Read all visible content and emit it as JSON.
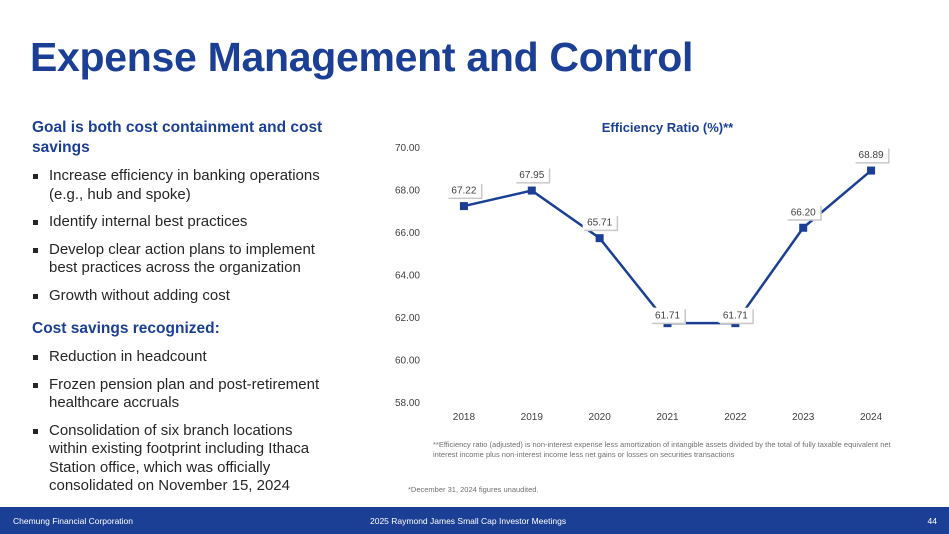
{
  "slide": {
    "title": "Expense Management and Control",
    "footer": {
      "company": "Chemung Financial Corporation",
      "event": "2025 Raymond James Small Cap Investor Meetings",
      "page_number": "44"
    }
  },
  "left": {
    "goal_heading": "Goal is both cost containment and cost savings",
    "goal_bullets": [
      "Increase efficiency in banking operations (e.g., hub and spoke)",
      "Identify internal best practices",
      "Develop clear action plans to implement best practices across the organization",
      "Growth without adding cost"
    ],
    "savings_heading": "Cost savings recognized:",
    "savings_bullets": [
      "Reduction in headcount",
      "Frozen pension plan and post-retirement healthcare accruals",
      "Consolidation of six branch locations within existing footprint including Ithaca Station office, which was officially consolidated on November 15, 2024"
    ]
  },
  "chart_data": {
    "type": "line",
    "title": "Efficiency Ratio (%)**",
    "categories": [
      "2018",
      "2019",
      "2020",
      "2021",
      "2022",
      "2023",
      "2024"
    ],
    "values": [
      67.22,
      67.95,
      65.71,
      61.71,
      61.71,
      66.2,
      68.89
    ],
    "data_labels": [
      "67.22",
      "67.95",
      "65.71",
      "61.71",
      "61.71",
      "66.20",
      "68.89"
    ],
    "yticks": [
      "58.00",
      "60.00",
      "62.00",
      "64.00",
      "66.00",
      "68.00",
      "70.00"
    ],
    "ylim": [
      58,
      70
    ],
    "grid": false,
    "marker": "square",
    "color": "#1b3f95",
    "label_box_color": "#ffffff",
    "label_text_color": "#404040"
  },
  "notes": {
    "efficiency_footnote": "**Efficiency ratio (adjusted) is non-interest expense less amortization of intangible assets divided by the total of fully taxable equivalent net interest income plus non-interest income less net gains or losses on securities transactions",
    "unaudited_note": "*December 31, 2024 figures unaudited."
  }
}
